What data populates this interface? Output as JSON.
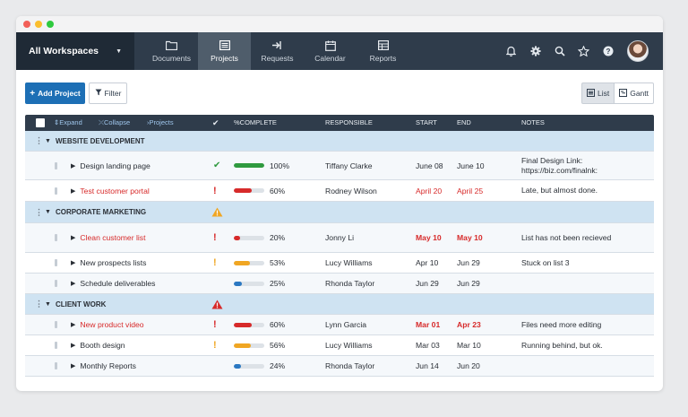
{
  "navbar": {
    "workspace": "All Workspaces",
    "items": [
      {
        "label": "Documents",
        "icon": "folder-icon"
      },
      {
        "label": "Projects",
        "icon": "projects-icon"
      },
      {
        "label": "Requests",
        "icon": "requests-icon"
      },
      {
        "label": "Calendar",
        "icon": "calendar-icon"
      },
      {
        "label": "Reports",
        "icon": "reports-icon"
      }
    ],
    "active": "Projects"
  },
  "toolbar": {
    "add_label": "Add Project",
    "filter_label": "Filter",
    "list_label": "List",
    "gantt_label": "Gantt"
  },
  "grid": {
    "header": {
      "expand": "Expand",
      "collapse": "Collapse",
      "projects": "Projects",
      "percent": "%COMPLETE",
      "responsible": "RESPONSIBLE",
      "start": "START",
      "end": "END",
      "notes": "NOTES"
    },
    "groups": [
      {
        "name": "WEBSITE DEVELOPMENT",
        "flag": "",
        "rows": [
          {
            "name": "Design landing page",
            "status": "done",
            "percent": 100,
            "percent_label": "100%",
            "responsible": "Tiffany Clarke",
            "start": "June 08",
            "end": "June 10",
            "notes_line1": "Final Design Link:",
            "notes_line2": "https://biz.com/finalnk:",
            "name_red": false,
            "dates_red": false,
            "dates_bold": false
          },
          {
            "name": "Test customer portal",
            "status": "critical",
            "percent": 60,
            "percent_label": "60%",
            "responsible": "Rodney Wilson",
            "start": "April 20",
            "end": "April 25",
            "notes_line1": "Late, but almost done.",
            "notes_line2": "",
            "name_red": true,
            "dates_red": true,
            "dates_bold": false
          }
        ]
      },
      {
        "name": "CORPORATE MARKETING",
        "flag": "warning",
        "rows": [
          {
            "name": "Clean customer list",
            "status": "critical",
            "percent": 20,
            "percent_label": "20%",
            "responsible": "Jonny Li",
            "start": "May 10",
            "end": "May 10",
            "notes_line1": "List has not been recieved",
            "notes_line2": "",
            "name_red": true,
            "dates_red": true,
            "dates_bold": true
          },
          {
            "name": "New prospects lists",
            "status": "warning",
            "percent": 53,
            "percent_label": "53%",
            "responsible": "Lucy Williams",
            "start": "Apr 10",
            "end": "Jun 29",
            "notes_line1": "Stuck on list 3",
            "notes_line2": "",
            "name_red": false,
            "dates_red": false,
            "dates_bold": false
          },
          {
            "name": "Schedule deliverables",
            "status": "",
            "percent": 25,
            "percent_label": "25%",
            "responsible": "Rhonda Taylor",
            "start": "Jun 29",
            "end": "Jun 29",
            "notes_line1": "",
            "notes_line2": "",
            "name_red": false,
            "dates_red": false,
            "dates_bold": false
          }
        ]
      },
      {
        "name": "CLIENT WORK",
        "flag": "critical",
        "rows": [
          {
            "name": "New product video",
            "status": "critical",
            "percent": 60,
            "percent_label": "60%",
            "responsible": "Lynn Garcia",
            "start": "Mar 01",
            "end": "Apr 23",
            "notes_line1": "Files need more editing",
            "notes_line2": "",
            "name_red": true,
            "dates_red": true,
            "dates_bold": true
          },
          {
            "name": "Booth design",
            "status": "warning",
            "percent": 56,
            "percent_label": "56%",
            "responsible": "Lucy Williams",
            "start": "Mar 03",
            "end": "Mar 10",
            "notes_line1": "Running behind, but ok.",
            "notes_line2": "",
            "name_red": false,
            "dates_red": false,
            "dates_bold": false
          },
          {
            "name": "Monthly Reports",
            "status": "",
            "percent": 24,
            "percent_label": "24%",
            "responsible": "Rhonda Taylor",
            "start": "Jun 14",
            "end": "Jun 20",
            "notes_line1": "",
            "notes_line2": "",
            "name_red": false,
            "dates_red": false,
            "dates_bold": false
          }
        ]
      }
    ]
  },
  "colors": {
    "done": "#2f9a3f",
    "warning": "#f0a623",
    "critical": "#d72a2a",
    "normal": "#2b78c2",
    "group_bg": "#cfe3f2",
    "nav_bg": "#2f3c4b",
    "accent": "#1d6fb5"
  }
}
